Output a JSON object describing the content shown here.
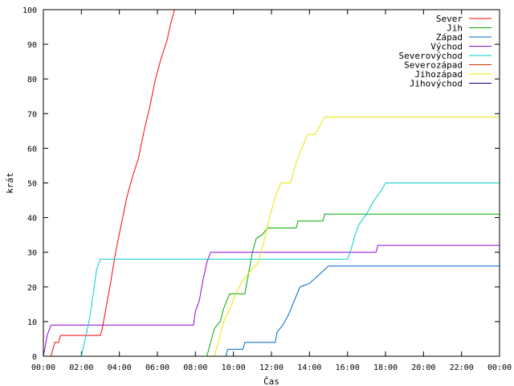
{
  "chart_data": {
    "type": "line",
    "xlabel": "Čas",
    "ylabel": "krát",
    "x_ticks": [
      "00:00",
      "02:00",
      "04:00",
      "06:00",
      "08:00",
      "10:00",
      "12:00",
      "14:00",
      "16:00",
      "18:00",
      "20:00",
      "22:00",
      "00:00"
    ],
    "xlim": [
      0,
      24
    ],
    "ylim": [
      0,
      100
    ],
    "y_ticks": [
      0,
      10,
      20,
      30,
      40,
      50,
      60,
      70,
      80,
      90,
      100
    ],
    "grid": false,
    "legend_position": "top-right",
    "series": [
      {
        "name": "Sever",
        "color": "#ff0000",
        "points": [
          [
            0.4,
            0
          ],
          [
            0.5,
            2
          ],
          [
            0.6,
            4
          ],
          [
            0.8,
            4
          ],
          [
            0.9,
            6
          ],
          [
            3.0,
            6
          ],
          [
            3.1,
            8
          ],
          [
            3.2,
            11
          ],
          [
            3.5,
            20
          ],
          [
            3.8,
            30
          ],
          [
            4.1,
            38
          ],
          [
            4.4,
            46
          ],
          [
            4.7,
            52
          ],
          [
            5.0,
            57
          ],
          [
            5.3,
            65
          ],
          [
            5.6,
            72
          ],
          [
            5.9,
            80
          ],
          [
            6.2,
            86
          ],
          [
            6.5,
            91
          ],
          [
            6.7,
            96
          ],
          [
            6.9,
            100
          ]
        ]
      },
      {
        "name": "Jih",
        "color": "#00aa00",
        "points": [
          [
            8.6,
            0
          ],
          [
            8.8,
            4
          ],
          [
            9.0,
            8
          ],
          [
            9.3,
            10
          ],
          [
            9.5,
            14
          ],
          [
            9.8,
            18
          ],
          [
            10.6,
            18
          ],
          [
            10.8,
            24
          ],
          [
            11.0,
            30
          ],
          [
            11.2,
            34
          ],
          [
            11.5,
            35
          ],
          [
            11.8,
            37
          ],
          [
            13.3,
            37
          ],
          [
            13.4,
            39
          ],
          [
            14.7,
            39
          ],
          [
            14.8,
            41
          ],
          [
            24,
            41
          ]
        ]
      },
      {
        "name": "Západ",
        "color": "#0066cc",
        "points": [
          [
            9.6,
            0
          ],
          [
            9.7,
            2
          ],
          [
            10.5,
            2
          ],
          [
            10.6,
            4
          ],
          [
            12.2,
            4
          ],
          [
            12.3,
            7
          ],
          [
            12.6,
            9
          ],
          [
            12.9,
            12
          ],
          [
            13.2,
            16
          ],
          [
            13.5,
            20
          ],
          [
            14.0,
            21
          ],
          [
            14.4,
            23
          ],
          [
            14.8,
            25
          ],
          [
            15.0,
            26
          ],
          [
            24,
            26
          ]
        ]
      },
      {
        "name": "Východ",
        "color": "#9400d3",
        "points": [
          [
            0,
            0
          ],
          [
            0.1,
            3
          ],
          [
            0.2,
            6
          ],
          [
            0.4,
            9
          ],
          [
            7.9,
            9
          ],
          [
            8.0,
            13
          ],
          [
            8.2,
            16
          ],
          [
            8.4,
            22
          ],
          [
            8.6,
            27
          ],
          [
            8.8,
            30
          ],
          [
            17.5,
            30
          ],
          [
            17.6,
            32
          ],
          [
            24,
            32
          ]
        ]
      },
      {
        "name": "Severovýchod",
        "color": "#00cccc",
        "points": [
          [
            2.0,
            0
          ],
          [
            2.2,
            5
          ],
          [
            2.4,
            10
          ],
          [
            2.6,
            17
          ],
          [
            2.8,
            25
          ],
          [
            3.0,
            28
          ],
          [
            16.0,
            28
          ],
          [
            16.2,
            31
          ],
          [
            16.4,
            35
          ],
          [
            16.6,
            38
          ],
          [
            17.0,
            41
          ],
          [
            17.4,
            45
          ],
          [
            17.8,
            48
          ],
          [
            18.0,
            50
          ],
          [
            24,
            50
          ]
        ]
      },
      {
        "name": "Severozápad",
        "color": "#cc3300",
        "points": []
      },
      {
        "name": "Jihozápad",
        "color": "#e8e800",
        "points": [
          [
            9.0,
            0
          ],
          [
            9.2,
            4
          ],
          [
            9.5,
            10
          ],
          [
            9.9,
            15
          ],
          [
            10.2,
            19
          ],
          [
            10.5,
            22
          ],
          [
            10.8,
            24
          ],
          [
            11.3,
            27
          ],
          [
            11.6,
            33
          ],
          [
            11.9,
            40
          ],
          [
            12.2,
            46
          ],
          [
            12.5,
            50
          ],
          [
            13.0,
            50
          ],
          [
            13.3,
            56
          ],
          [
            13.6,
            60
          ],
          [
            13.9,
            64
          ],
          [
            14.3,
            64
          ],
          [
            14.6,
            67
          ],
          [
            14.8,
            69
          ],
          [
            24,
            69
          ]
        ]
      },
      {
        "name": "Jihovýchod",
        "color": "#000099",
        "points": []
      }
    ]
  }
}
